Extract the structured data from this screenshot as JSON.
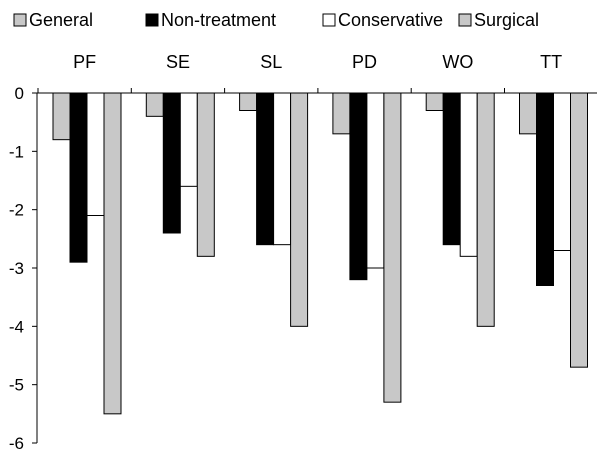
{
  "chart_data": {
    "type": "bar",
    "categories": [
      "PF",
      "SE",
      "SL",
      "PD",
      "WO",
      "TT"
    ],
    "series": [
      {
        "name": "General",
        "color": "#c8c8c8",
        "values": [
          -0.8,
          -0.4,
          -0.3,
          -0.7,
          -0.3,
          -0.7
        ]
      },
      {
        "name": "Non-treatment",
        "color": "#000000",
        "values": [
          -2.9,
          -2.4,
          -2.6,
          -3.2,
          -2.6,
          -3.3
        ]
      },
      {
        "name": "Conservative",
        "color": "#ffffff",
        "values": [
          -2.1,
          -1.6,
          -2.6,
          -3.0,
          -2.8,
          -2.7
        ]
      },
      {
        "name": "Surgical",
        "color": "#c8c8c8",
        "values": [
          -5.5,
          -2.8,
          -4.0,
          -5.3,
          -4.0,
          -4.7
        ]
      }
    ],
    "ylim": [
      -6,
      0
    ],
    "yticks": [
      "0",
      "-1",
      "-2",
      "-3",
      "-4",
      "-5",
      "-6"
    ],
    "legend_position": "top",
    "category_labels_position": "top",
    "grid": false
  }
}
